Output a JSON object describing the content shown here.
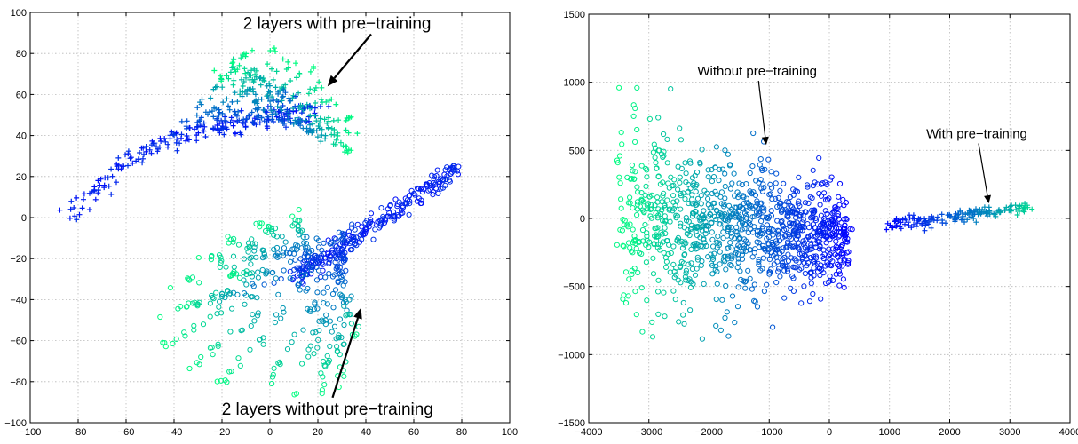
{
  "chart_data": [
    {
      "type": "scatter",
      "title": "",
      "xlabel": "",
      "ylabel": "",
      "xlim": [
        -100,
        100
      ],
      "ylim": [
        -100,
        100
      ],
      "xticks": [
        -100,
        -80,
        -60,
        -40,
        -20,
        0,
        20,
        40,
        60,
        80,
        100
      ],
      "yticks": [
        -100,
        -80,
        -60,
        -40,
        -20,
        0,
        20,
        40,
        60,
        80,
        100
      ],
      "grid": true,
      "color_scale": [
        "#0000ff",
        "#00ff80"
      ],
      "series": [
        {
          "marker": "+",
          "path": [
            [
              -82,
              0
            ],
            [
              -75,
              12
            ],
            [
              -62,
              25
            ],
            [
              -45,
              36
            ],
            [
              -28,
              43
            ],
            [
              -12,
              46
            ],
            [
              5,
              50
            ],
            [
              22,
              52
            ]
          ],
          "fan_spokes": [
            [
              -8,
              82
            ],
            [
              2,
              82
            ],
            [
              10,
              78
            ],
            [
              18,
              73
            ],
            [
              25,
              66
            ],
            [
              30,
              58
            ],
            [
              34,
              48
            ],
            [
              36,
              40
            ],
            [
              34,
              32
            ],
            [
              -22,
              70
            ],
            [
              -16,
              76
            ]
          ],
          "n_points": 520
        },
        {
          "marker": "o",
          "path": [
            [
              80,
              25
            ],
            [
              70,
              18
            ],
            [
              60,
              10
            ],
            [
              50,
              2
            ],
            [
              40,
              -6
            ],
            [
              30,
              -14
            ],
            [
              20,
              -22
            ],
            [
              10,
              -30
            ]
          ],
          "fan_spokes": [
            [
              -40,
              -33
            ],
            [
              -45,
              -50
            ],
            [
              -44,
              -62
            ],
            [
              -35,
              -75
            ],
            [
              -22,
              -82
            ],
            [
              -5,
              -87
            ],
            [
              10,
              -88
            ],
            [
              22,
              -88
            ],
            [
              30,
              -83
            ],
            [
              36,
              -62
            ],
            [
              -30,
              -20
            ],
            [
              -20,
              -10
            ],
            [
              -5,
              -2
            ],
            [
              10,
              3
            ],
            [
              -18,
              -28
            ],
            [
              -40,
              -45
            ]
          ],
          "n_points": 640
        }
      ],
      "annotations": [
        {
          "text": "2 layers with pre−training",
          "x": 28,
          "y": 92,
          "arrow_to": [
            24,
            64
          ]
        },
        {
          "text": "2 layers without pre−training",
          "x": 24,
          "y": -96,
          "arrow_to": [
            38,
            -44
          ]
        }
      ]
    },
    {
      "type": "scatter",
      "title": "",
      "xlabel": "",
      "ylabel": "",
      "xlim": [
        -4000,
        4000
      ],
      "ylim": [
        -1500,
        1500
      ],
      "xticks": [
        -4000,
        -3000,
        -2000,
        -1000,
        0,
        1000,
        2000,
        3000,
        4000
      ],
      "yticks": [
        -1500,
        -1000,
        -500,
        0,
        500,
        1000,
        1500
      ],
      "grid": true,
      "color_scale": [
        "#0000ff",
        "#00ff80"
      ],
      "series": [
        {
          "marker": "o",
          "x_range": [
            -3500,
            300
          ],
          "center_y": [
            0,
            -150
          ],
          "spread_y": [
            650,
            300
          ],
          "n_points": 1100
        },
        {
          "marker": "+",
          "path": [
            [
              900,
              -50
            ],
            [
              1500,
              -20
            ],
            [
              2000,
              10
            ],
            [
              2500,
              40
            ],
            [
              3000,
              70
            ],
            [
              3300,
              80
            ]
          ],
          "n_points": 160
        }
      ],
      "annotations": [
        {
          "text": "Without pre−training",
          "x": -1200,
          "y": 1050,
          "arrow_to": [
            -1050,
            540
          ]
        },
        {
          "text": "With pre−training",
          "x": 2450,
          "y": 590,
          "arrow_to": [
            2650,
            110
          ]
        }
      ]
    }
  ]
}
